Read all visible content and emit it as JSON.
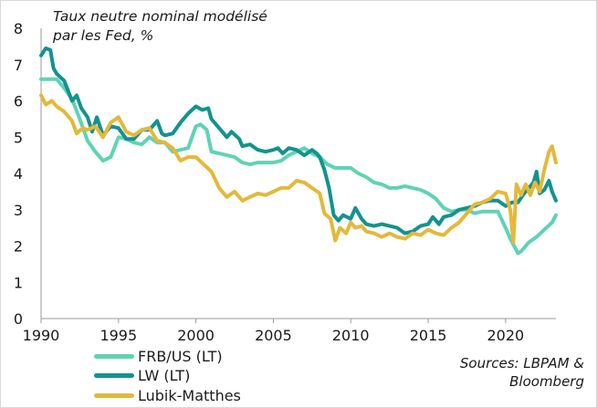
{
  "chart_data": {
    "type": "line",
    "title_lines": [
      "Taux neutre nominal modélisé",
      "par les Fed, %"
    ],
    "xlabel": "",
    "ylabel": "",
    "xlim": [
      1990,
      2023.25
    ],
    "ylim": [
      0,
      8
    ],
    "xticks": [
      1990,
      1995,
      2000,
      2005,
      2010,
      2015,
      2020
    ],
    "yticks": [
      0,
      1,
      2,
      3,
      4,
      5,
      6,
      7,
      8
    ],
    "grid": false,
    "legend_position": "bottom-left",
    "source_lines": [
      "Sources: LBPAM &",
      "Bloomberg"
    ],
    "series": [
      {
        "name": "FRB/US (LT)",
        "color": "#5fd3b5",
        "points": [
          [
            1990,
            6.6
          ],
          [
            1990.5,
            6.6
          ],
          [
            1991,
            6.6
          ],
          [
            1991.5,
            6.35
          ],
          [
            1992,
            6.05
          ],
          [
            1992.5,
            5.5
          ],
          [
            1993,
            4.9
          ],
          [
            1993.5,
            4.6
          ],
          [
            1994,
            4.35
          ],
          [
            1994.5,
            4.45
          ],
          [
            1995,
            5.0
          ],
          [
            1995.5,
            4.95
          ],
          [
            1996,
            4.85
          ],
          [
            1996.5,
            4.8
          ],
          [
            1997,
            5.0
          ],
          [
            1997.5,
            4.85
          ],
          [
            1998,
            4.85
          ],
          [
            1998.5,
            4.6
          ],
          [
            1999,
            4.65
          ],
          [
            1999.5,
            4.7
          ],
          [
            2000,
            5.3
          ],
          [
            2000.3,
            5.35
          ],
          [
            2000.7,
            5.2
          ],
          [
            2001,
            4.6
          ],
          [
            2001.5,
            4.55
          ],
          [
            2002,
            4.5
          ],
          [
            2002.5,
            4.45
          ],
          [
            2003,
            4.3
          ],
          [
            2003.5,
            4.25
          ],
          [
            2004,
            4.3
          ],
          [
            2004.5,
            4.3
          ],
          [
            2005,
            4.3
          ],
          [
            2005.5,
            4.35
          ],
          [
            2006,
            4.5
          ],
          [
            2006.5,
            4.6
          ],
          [
            2007,
            4.7
          ],
          [
            2007.5,
            4.55
          ],
          [
            2008,
            4.45
          ],
          [
            2008.5,
            4.25
          ],
          [
            2009,
            4.15
          ],
          [
            2009.5,
            4.15
          ],
          [
            2010,
            4.15
          ],
          [
            2010.5,
            4.0
          ],
          [
            2011,
            3.9
          ],
          [
            2011.5,
            3.75
          ],
          [
            2012,
            3.7
          ],
          [
            2012.5,
            3.6
          ],
          [
            2013,
            3.6
          ],
          [
            2013.5,
            3.65
          ],
          [
            2014,
            3.6
          ],
          [
            2014.5,
            3.55
          ],
          [
            2015,
            3.45
          ],
          [
            2015.5,
            3.3
          ],
          [
            2016,
            3.05
          ],
          [
            2016.5,
            2.95
          ],
          [
            2017,
            3.0
          ],
          [
            2017.5,
            3.0
          ],
          [
            2018,
            2.9
          ],
          [
            2018.5,
            2.95
          ],
          [
            2019,
            2.95
          ],
          [
            2019.5,
            2.95
          ],
          [
            2020,
            2.5
          ],
          [
            2020.3,
            2.2
          ],
          [
            2020.8,
            1.8
          ],
          [
            2021,
            1.85
          ],
          [
            2021.5,
            2.1
          ],
          [
            2022,
            2.25
          ],
          [
            2022.5,
            2.45
          ],
          [
            2023,
            2.65
          ],
          [
            2023.25,
            2.85
          ]
        ]
      },
      {
        "name": "LW (LT)",
        "color": "#12938e",
        "points": [
          [
            1990,
            7.25
          ],
          [
            1990.3,
            7.45
          ],
          [
            1990.6,
            7.4
          ],
          [
            1990.8,
            6.9
          ],
          [
            1991,
            6.75
          ],
          [
            1991.5,
            6.55
          ],
          [
            1992,
            6.0
          ],
          [
            1992.3,
            6.15
          ],
          [
            1992.6,
            5.8
          ],
          [
            1993,
            5.55
          ],
          [
            1993.3,
            5.15
          ],
          [
            1993.6,
            5.55
          ],
          [
            1994,
            5.05
          ],
          [
            1994.5,
            5.3
          ],
          [
            1995,
            5.25
          ],
          [
            1995.5,
            4.95
          ],
          [
            1996,
            4.95
          ],
          [
            1996.5,
            5.2
          ],
          [
            1997,
            5.2
          ],
          [
            1997.5,
            5.45
          ],
          [
            1997.8,
            5.1
          ],
          [
            1998,
            5.05
          ],
          [
            1998.5,
            5.1
          ],
          [
            1999,
            5.4
          ],
          [
            1999.5,
            5.65
          ],
          [
            2000,
            5.85
          ],
          [
            2000.4,
            5.75
          ],
          [
            2000.8,
            5.8
          ],
          [
            2001,
            5.5
          ],
          [
            2001.5,
            5.25
          ],
          [
            2002,
            5.0
          ],
          [
            2002.3,
            5.15
          ],
          [
            2002.8,
            4.95
          ],
          [
            2003,
            4.75
          ],
          [
            2003.5,
            4.8
          ],
          [
            2004,
            4.65
          ],
          [
            2004.5,
            4.6
          ],
          [
            2005,
            4.65
          ],
          [
            2005.3,
            4.7
          ],
          [
            2005.6,
            4.55
          ],
          [
            2006,
            4.7
          ],
          [
            2006.5,
            4.65
          ],
          [
            2007,
            4.5
          ],
          [
            2007.5,
            4.65
          ],
          [
            2007.8,
            4.55
          ],
          [
            2008,
            4.45
          ],
          [
            2008.3,
            4.1
          ],
          [
            2008.6,
            3.6
          ],
          [
            2008.9,
            2.85
          ],
          [
            2009.2,
            2.7
          ],
          [
            2009.5,
            2.85
          ],
          [
            2010,
            2.75
          ],
          [
            2010.3,
            3.05
          ],
          [
            2010.7,
            2.75
          ],
          [
            2011,
            2.6
          ],
          [
            2011.5,
            2.55
          ],
          [
            2012,
            2.6
          ],
          [
            2012.5,
            2.55
          ],
          [
            2013,
            2.5
          ],
          [
            2013.5,
            2.35
          ],
          [
            2014,
            2.4
          ],
          [
            2014.5,
            2.55
          ],
          [
            2015,
            2.6
          ],
          [
            2015.3,
            2.8
          ],
          [
            2015.7,
            2.6
          ],
          [
            2016,
            2.8
          ],
          [
            2016.5,
            2.85
          ],
          [
            2017,
            3.0
          ],
          [
            2017.5,
            3.05
          ],
          [
            2018,
            3.1
          ],
          [
            2018.5,
            3.2
          ],
          [
            2019,
            3.25
          ],
          [
            2019.5,
            3.25
          ],
          [
            2020,
            3.1
          ],
          [
            2020.4,
            3.2
          ],
          [
            2020.8,
            3.2
          ],
          [
            2021.2,
            3.45
          ],
          [
            2021.5,
            3.6
          ],
          [
            2021.8,
            3.75
          ],
          [
            2022,
            4.05
          ],
          [
            2022.2,
            3.45
          ],
          [
            2022.5,
            3.55
          ],
          [
            2022.8,
            3.8
          ],
          [
            2023,
            3.5
          ],
          [
            2023.25,
            3.25
          ]
        ]
      },
      {
        "name": "Lubik-Matthes",
        "color": "#e5b83a",
        "points": [
          [
            1990,
            6.15
          ],
          [
            1990.3,
            5.9
          ],
          [
            1990.7,
            6.0
          ],
          [
            1991,
            5.85
          ],
          [
            1991.5,
            5.7
          ],
          [
            1992,
            5.45
          ],
          [
            1992.3,
            5.1
          ],
          [
            1992.7,
            5.25
          ],
          [
            1993,
            5.2
          ],
          [
            1993.5,
            5.3
          ],
          [
            1994,
            5.0
          ],
          [
            1994.5,
            5.4
          ],
          [
            1995,
            5.55
          ],
          [
            1995.5,
            5.15
          ],
          [
            1996,
            5.05
          ],
          [
            1996.5,
            5.2
          ],
          [
            1997,
            5.25
          ],
          [
            1997.5,
            4.9
          ],
          [
            1998,
            4.85
          ],
          [
            1998.5,
            4.7
          ],
          [
            1999,
            4.35
          ],
          [
            1999.5,
            4.45
          ],
          [
            2000,
            4.45
          ],
          [
            2000.5,
            4.25
          ],
          [
            2001,
            4.05
          ],
          [
            2001.5,
            3.6
          ],
          [
            2002,
            3.35
          ],
          [
            2002.5,
            3.5
          ],
          [
            2003,
            3.25
          ],
          [
            2003.5,
            3.35
          ],
          [
            2004,
            3.45
          ],
          [
            2004.5,
            3.4
          ],
          [
            2005,
            3.5
          ],
          [
            2005.5,
            3.6
          ],
          [
            2006,
            3.6
          ],
          [
            2006.5,
            3.8
          ],
          [
            2007,
            3.75
          ],
          [
            2007.5,
            3.6
          ],
          [
            2008,
            3.45
          ],
          [
            2008.3,
            2.9
          ],
          [
            2008.7,
            2.75
          ],
          [
            2009,
            2.15
          ],
          [
            2009.3,
            2.5
          ],
          [
            2009.7,
            2.35
          ],
          [
            2010,
            2.65
          ],
          [
            2010.3,
            2.5
          ],
          [
            2010.7,
            2.55
          ],
          [
            2011,
            2.4
          ],
          [
            2011.5,
            2.35
          ],
          [
            2012,
            2.25
          ],
          [
            2012.5,
            2.35
          ],
          [
            2013,
            2.25
          ],
          [
            2013.5,
            2.2
          ],
          [
            2014,
            2.35
          ],
          [
            2014.5,
            2.3
          ],
          [
            2015,
            2.45
          ],
          [
            2015.5,
            2.35
          ],
          [
            2016,
            2.3
          ],
          [
            2016.5,
            2.5
          ],
          [
            2017,
            2.65
          ],
          [
            2017.5,
            2.9
          ],
          [
            2018,
            3.15
          ],
          [
            2018.5,
            3.2
          ],
          [
            2019,
            3.3
          ],
          [
            2019.5,
            3.5
          ],
          [
            2020,
            3.45
          ],
          [
            2020.3,
            3.0
          ],
          [
            2020.5,
            2.1
          ],
          [
            2020.7,
            3.7
          ],
          [
            2021,
            3.4
          ],
          [
            2021.3,
            3.7
          ],
          [
            2021.6,
            3.4
          ],
          [
            2021.9,
            3.75
          ],
          [
            2022.2,
            3.5
          ],
          [
            2022.5,
            4.1
          ],
          [
            2022.8,
            4.6
          ],
          [
            2023,
            4.75
          ],
          [
            2023.25,
            4.3
          ]
        ]
      }
    ]
  }
}
